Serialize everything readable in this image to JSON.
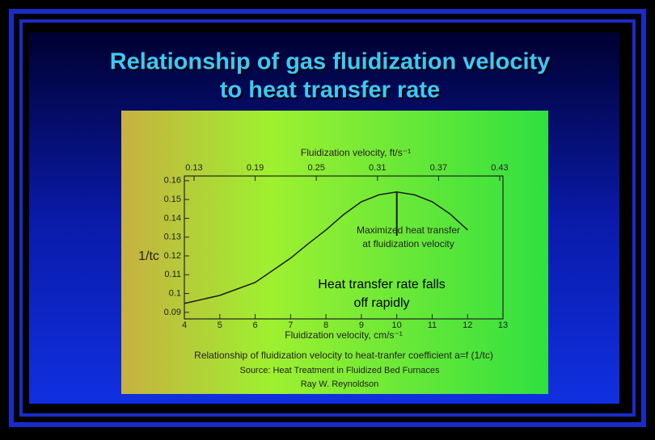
{
  "slide_title": [
    "Relationship of gas fluidization velocity",
    "to heat transfer rate"
  ],
  "chart_data": {
    "type": "line",
    "top_axis_label": "Fluidization velocity, ft/s⁻¹",
    "xlabel": "Fluidization velocity, cm/s⁻¹",
    "ylabel": "1/tc",
    "x": [
      4,
      5,
      6,
      7,
      7.5,
      8,
      8.5,
      9,
      9.5,
      10,
      10.5,
      11,
      11.5,
      12
    ],
    "series": [
      {
        "name": "1/tc",
        "color": "#1a1a1a",
        "values": [
          0.0947,
          0.099,
          0.1059,
          0.1188,
          0.1265,
          0.1338,
          0.142,
          0.1488,
          0.1525,
          0.154,
          0.1525,
          0.1488,
          0.1424,
          0.1338
        ]
      }
    ],
    "xlim": [
      4,
      13
    ],
    "xticks": [
      4,
      5,
      6,
      7,
      8,
      9,
      10,
      11,
      12,
      13
    ],
    "x2lim": [
      0.1205,
      0.4332
    ],
    "x2ticks": [
      0.13,
      0.19,
      0.25,
      0.31,
      0.37,
      0.43
    ],
    "ylim": [
      0.0865,
      0.1625
    ],
    "yticks": [
      0.09,
      0.1,
      0.11,
      0.12,
      0.13,
      0.14,
      0.15,
      0.16
    ],
    "annotations": [
      "Maximized heat transfer",
      "at fluidization velocity"
    ],
    "callout": [
      "Heat transfer rate falls",
      "off rapidly"
    ],
    "caption": [
      "Relationship of fluidization velocity to heat-tranfer coefficient a=f (1/tc)",
      "Source: Heat Treatment in Fluidized Bed Furnaces",
      "Ray W. Reynoldson"
    ]
  }
}
